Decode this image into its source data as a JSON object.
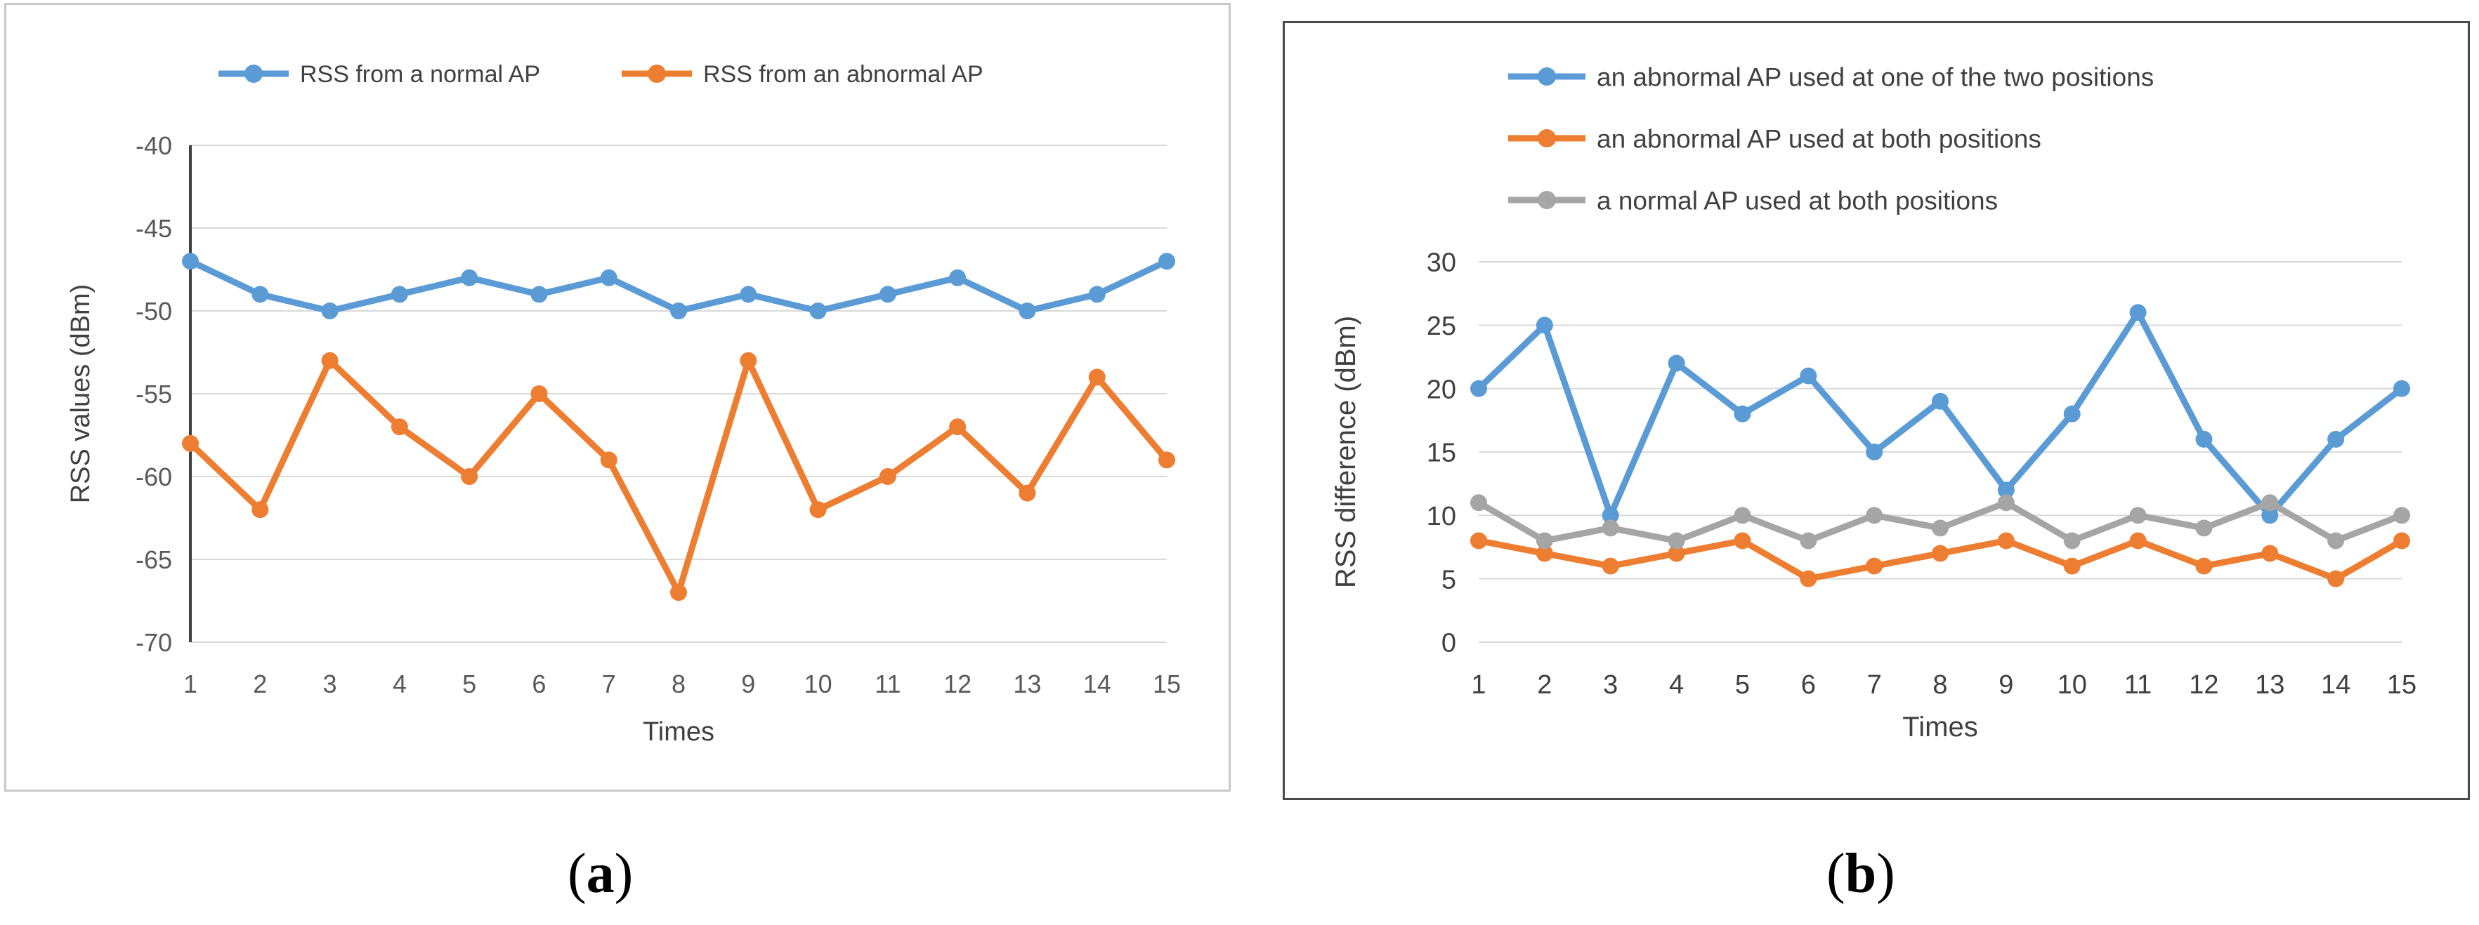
{
  "chart_data": [
    {
      "panel": "(a)",
      "type": "line",
      "title": "",
      "xlabel": "Times",
      "ylabel": "RSS values (dBm)",
      "categories": [
        "1",
        "2",
        "3",
        "4",
        "5",
        "6",
        "7",
        "8",
        "9",
        "10",
        "11",
        "12",
        "13",
        "14",
        "15"
      ],
      "ylim": [
        -70,
        -40
      ],
      "yticks": [
        -40,
        -45,
        -50,
        -55,
        -60,
        -65,
        -70
      ],
      "grid": true,
      "legend_position": "top",
      "series": [
        {
          "name": "RSS from a normal AP",
          "color": "#5b9bd5",
          "values": [
            -47,
            -49,
            -50,
            -49,
            -48,
            -49,
            -48,
            -50,
            -49,
            -50,
            -49,
            -48,
            -50,
            -49,
            -47
          ]
        },
        {
          "name": "RSS from an abnormal AP",
          "color": "#ed7d31",
          "values": [
            -58,
            -62,
            -53,
            -57,
            -60,
            -55,
            -59,
            -67,
            -53,
            -62,
            -60,
            -57,
            -61,
            -54,
            -59
          ]
        }
      ]
    },
    {
      "panel": "(b)",
      "type": "line",
      "title": "",
      "xlabel": "Times",
      "ylabel": "RSS difference (dBm)",
      "categories": [
        "1",
        "2",
        "3",
        "4",
        "5",
        "6",
        "7",
        "8",
        "9",
        "10",
        "11",
        "12",
        "13",
        "14",
        "15"
      ],
      "ylim": [
        0,
        30
      ],
      "yticks": [
        0,
        5,
        10,
        15,
        20,
        25,
        30
      ],
      "grid": true,
      "legend_position": "top-left",
      "series": [
        {
          "name": "an abnormal AP used at one of the two positions",
          "color": "#5b9bd5",
          "values": [
            20,
            25,
            10,
            22,
            18,
            21,
            15,
            19,
            12,
            18,
            26,
            16,
            10,
            16,
            20
          ]
        },
        {
          "name": "an abnormal AP used at  both positions",
          "color": "#ed7d31",
          "values": [
            8,
            7,
            6,
            7,
            8,
            5,
            6,
            7,
            8,
            6,
            8,
            6,
            7,
            5,
            8
          ]
        },
        {
          "name": "a normal AP used at both positions",
          "color": "#a5a5a5",
          "values": [
            11,
            8,
            9,
            8,
            10,
            8,
            10,
            9,
            11,
            8,
            10,
            9,
            11,
            8,
            10
          ]
        }
      ]
    }
  ],
  "captions": {
    "a": "a",
    "b": "b"
  }
}
